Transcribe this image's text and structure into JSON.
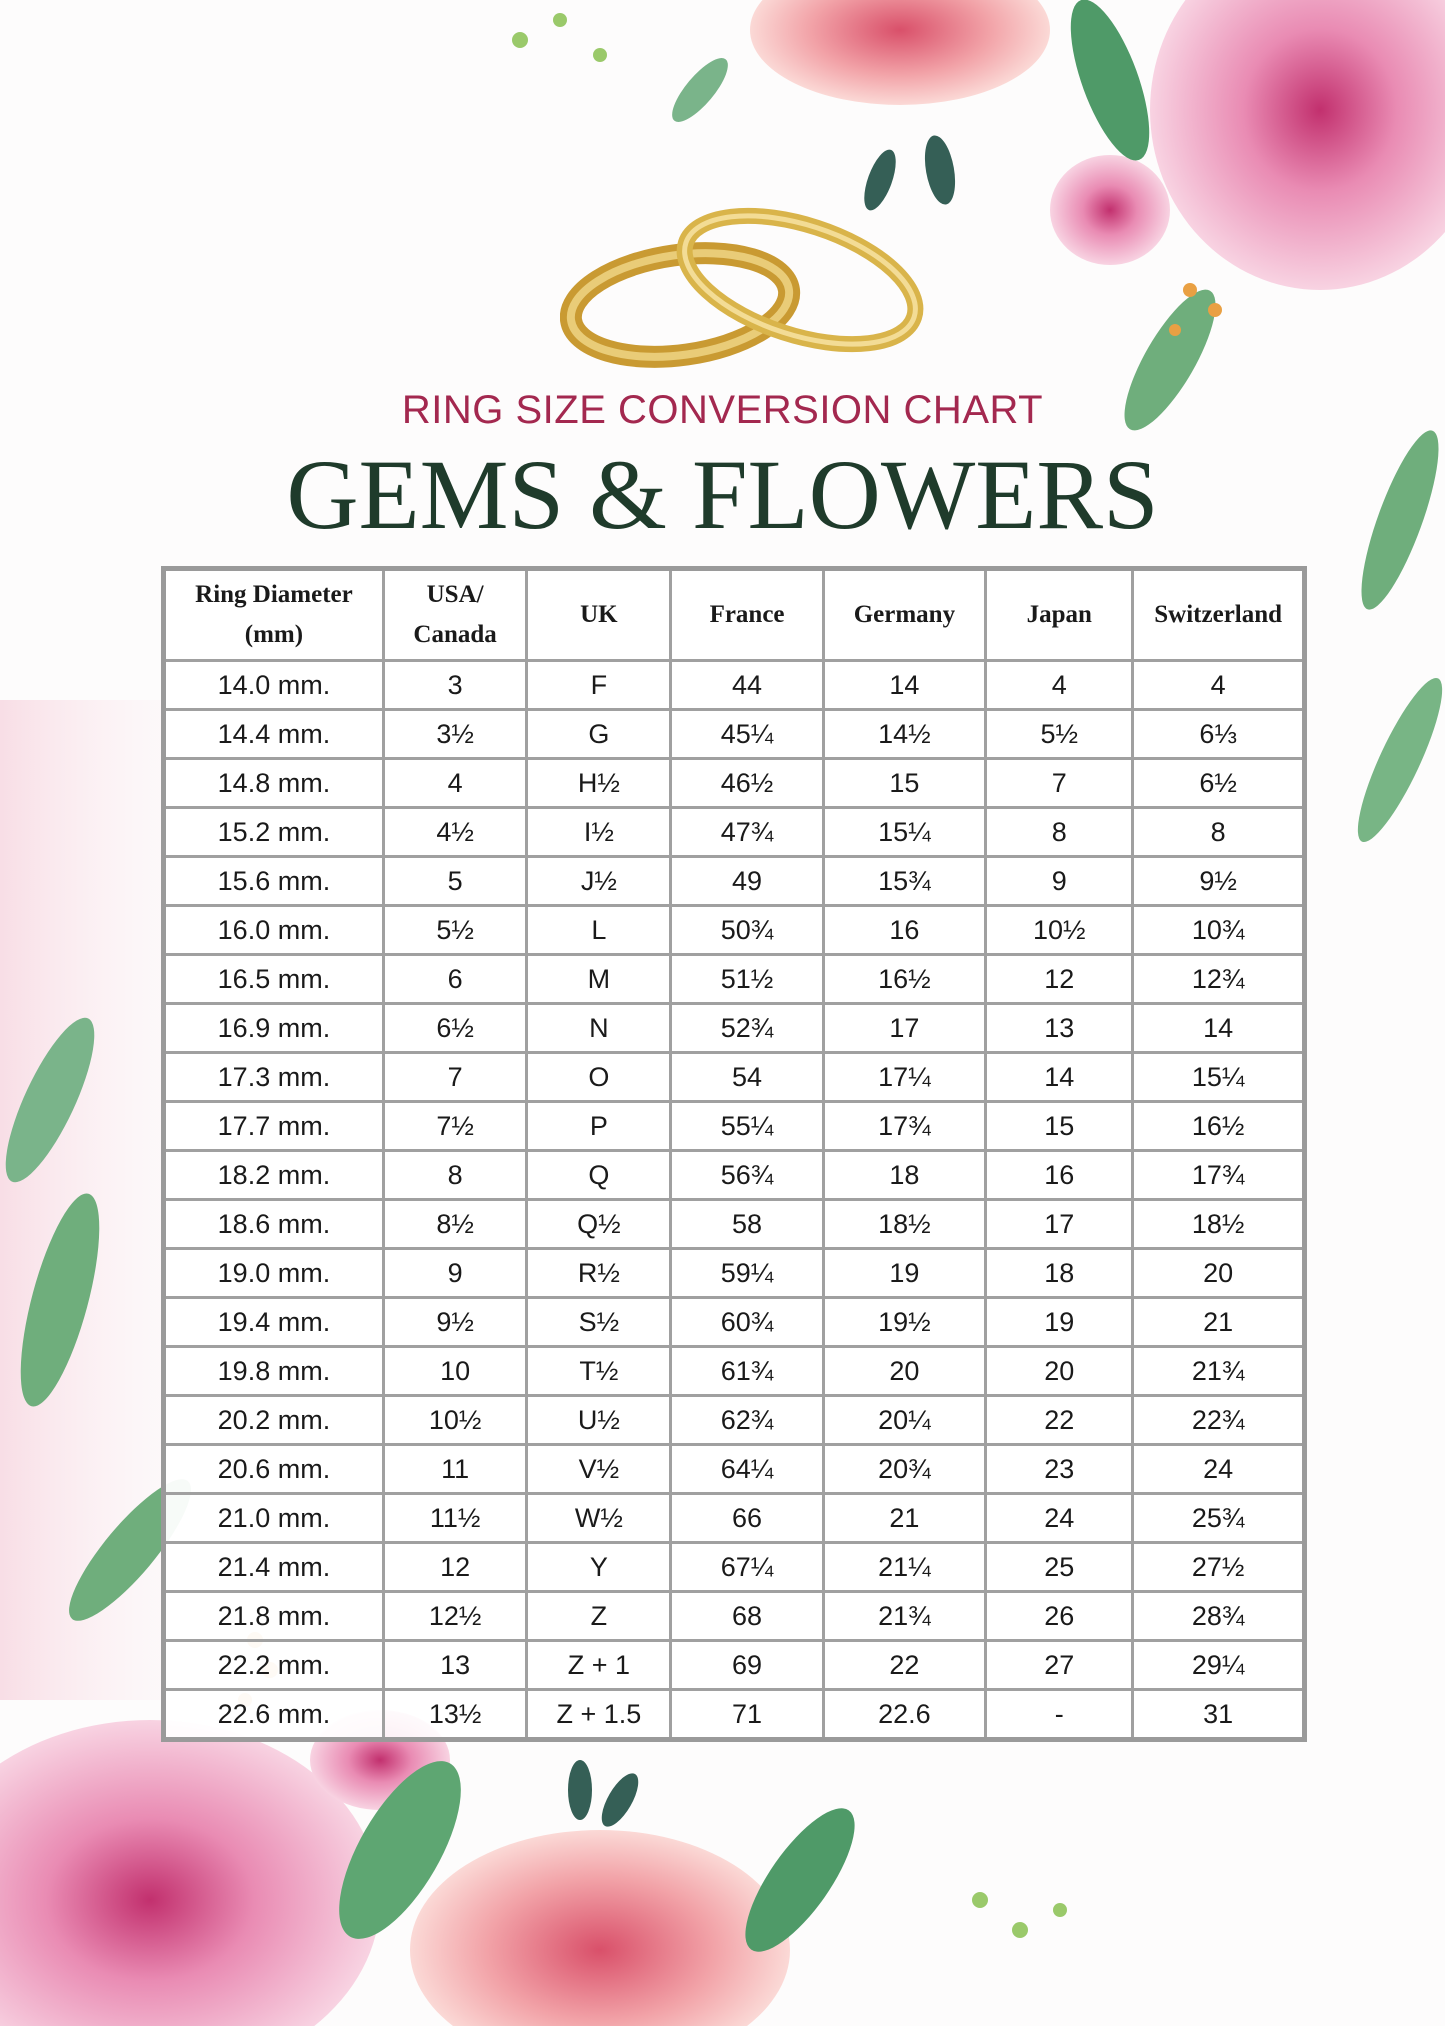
{
  "header": {
    "subtitle": "RING SIZE CONVERSION CHART",
    "title": "GEMS & FLOWERS"
  },
  "colors": {
    "subtitle": "#a3284f",
    "title": "#1f3b2b",
    "table_border": "#9a9a9a",
    "flower_pink": "#e98bb3",
    "leaf_green": "#6fae7c",
    "ring_gold": "#d9b44a"
  },
  "table": {
    "columns": [
      {
        "line1": "Ring Diameter",
        "line2": "(mm)"
      },
      {
        "line1": "USA/",
        "line2": "Canada"
      },
      {
        "line1": "UK",
        "line2": ""
      },
      {
        "line1": "France",
        "line2": ""
      },
      {
        "line1": "Germany",
        "line2": ""
      },
      {
        "line1": "Japan",
        "line2": ""
      },
      {
        "line1": "Switzerland",
        "line2": ""
      }
    ],
    "rows": [
      [
        "14.0 mm.",
        "3",
        "F",
        "44",
        "14",
        "4",
        "4"
      ],
      [
        "14.4 mm.",
        "3½",
        "G",
        "45¼",
        "14½",
        "5½",
        "6⅓"
      ],
      [
        "14.8 mm.",
        "4",
        "H½",
        "46½",
        "15",
        "7",
        "6½"
      ],
      [
        "15.2 mm.",
        "4½",
        "I½",
        "47¾",
        "15¼",
        "8",
        "8"
      ],
      [
        "15.6 mm.",
        "5",
        "J½",
        "49",
        "15¾",
        "9",
        "9½"
      ],
      [
        "16.0 mm.",
        "5½",
        "L",
        "50¾",
        "16",
        "10½",
        "10¾"
      ],
      [
        "16.5 mm.",
        "6",
        "M",
        "51½",
        "16½",
        "12",
        "12¾"
      ],
      [
        "16.9 mm.",
        "6½",
        "N",
        "52¾",
        "17",
        "13",
        "14"
      ],
      [
        "17.3 mm.",
        "7",
        "O",
        "54",
        "17¼",
        "14",
        "15¼"
      ],
      [
        "17.7 mm.",
        "7½",
        "P",
        "55¼",
        "17¾",
        "15",
        "16½"
      ],
      [
        "18.2 mm.",
        "8",
        "Q",
        "56¾",
        "18",
        "16",
        "17¾"
      ],
      [
        "18.6 mm.",
        "8½",
        "Q½",
        "58",
        "18½",
        "17",
        "18½"
      ],
      [
        "19.0 mm.",
        "9",
        "R½",
        "59¼",
        "19",
        "18",
        "20"
      ],
      [
        "19.4 mm.",
        "9½",
        "S½",
        "60¾",
        "19½",
        "19",
        "21"
      ],
      [
        "19.8 mm.",
        "10",
        "T½",
        "61¾",
        "20",
        "20",
        "21¾"
      ],
      [
        "20.2 mm.",
        "10½",
        "U½",
        "62¾",
        "20¼",
        "22",
        "22¾"
      ],
      [
        "20.6 mm.",
        "11",
        "V½",
        "64¼",
        "20¾",
        "23",
        "24"
      ],
      [
        "21.0 mm.",
        "11½",
        "W½",
        "66",
        "21",
        "24",
        "25¾"
      ],
      [
        "21.4 mm.",
        "12",
        "Y",
        "67¼",
        "21¼",
        "25",
        "27½"
      ],
      [
        "21.8 mm.",
        "12½",
        "Z",
        "68",
        "21¾",
        "26",
        "28¾"
      ],
      [
        "22.2 mm.",
        "13",
        "Z + 1",
        "69",
        "22",
        "27",
        "29¼"
      ],
      [
        "22.6 mm.",
        "13½",
        "Z + 1.5",
        "71",
        "22.6",
        "-",
        "31"
      ]
    ]
  }
}
